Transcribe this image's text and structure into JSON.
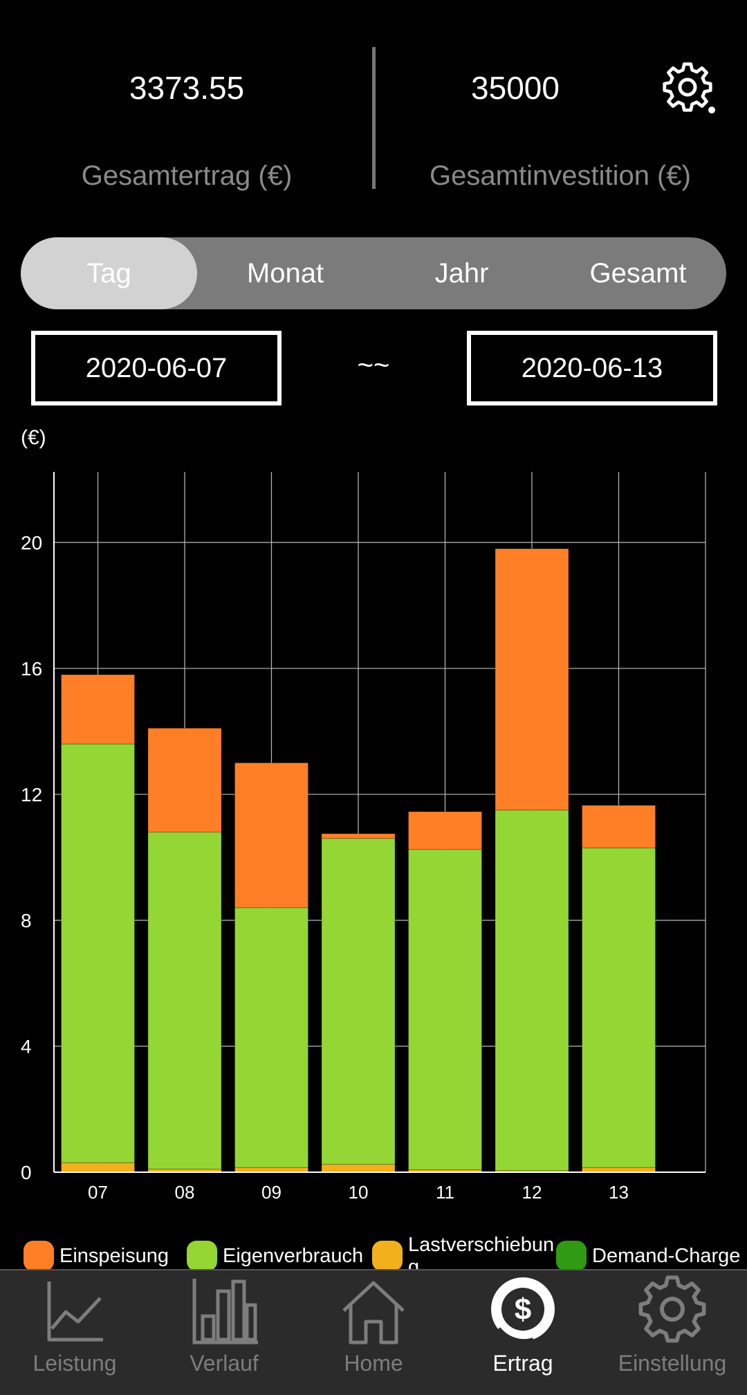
{
  "header": {
    "total_yield": {
      "value": "3373.55",
      "label": "Gesamtertrag (€)"
    },
    "total_investment": {
      "value": "35000",
      "label": "Gesamtinvestition (€)"
    },
    "settings_icon": "gear-icon"
  },
  "tabs": [
    {
      "label": "Tag",
      "active": true
    },
    {
      "label": "Monat",
      "active": false
    },
    {
      "label": "Jahr",
      "active": false
    },
    {
      "label": "Gesamt",
      "active": false
    }
  ],
  "date_range": {
    "start": "2020-06-07",
    "separator": "~~",
    "end": "2020-06-13"
  },
  "unit_label": "(€)",
  "colors": {
    "einspeisung": "#ff7f27",
    "eigenverbrauch": "#94d634",
    "lastverschiebung": "#f2b01c",
    "demand_charge": "#2f9a12",
    "grid": "#bdbdbd",
    "nav_bg": "#2b2b2b"
  },
  "chart_data": {
    "type": "bar",
    "stacked": true,
    "categories": [
      "07",
      "08",
      "09",
      "10",
      "11",
      "12",
      "13"
    ],
    "series": [
      {
        "name": "Lastverschiebung",
        "color": "#f2b01c",
        "values": [
          0.3,
          0.1,
          0.15,
          0.25,
          0.08,
          0.05,
          0.15
        ]
      },
      {
        "name": "Eigenverbrauch",
        "color": "#94d634",
        "values": [
          13.3,
          10.7,
          8.25,
          10.35,
          10.17,
          11.45,
          10.15
        ]
      },
      {
        "name": "Einspeisung",
        "color": "#ff7f27",
        "values": [
          2.2,
          3.3,
          4.6,
          0.15,
          1.2,
          8.3,
          1.35
        ]
      },
      {
        "name": "Demand-Charge",
        "color": "#2f9a12",
        "values": [
          0,
          0,
          0,
          0,
          0,
          0,
          0
        ]
      }
    ],
    "y_ticks": [
      "0",
      "4",
      "8",
      "12",
      "16",
      "20"
    ],
    "ylim": [
      0,
      21.8
    ],
    "grid": true,
    "legend_position": "bottom"
  },
  "legend": [
    {
      "label": "Einspeisung",
      "color": "#ff7f27"
    },
    {
      "label": "Eigenverbrauch",
      "color": "#94d634"
    },
    {
      "label": "Lastverschiebun\ng",
      "color": "#f2b01c"
    },
    {
      "label": "Demand-Charge",
      "color": "#2f9a12"
    }
  ],
  "bottom_nav": [
    {
      "label": "Leistung",
      "icon": "line-chart-icon",
      "active": false
    },
    {
      "label": "Verlauf",
      "icon": "bar-chart-icon",
      "active": false
    },
    {
      "label": "Home",
      "icon": "home-icon",
      "active": false
    },
    {
      "label": "Ertrag",
      "icon": "dollar-icon",
      "active": true
    },
    {
      "label": "Einstellung",
      "icon": "settings-icon",
      "active": false
    }
  ]
}
